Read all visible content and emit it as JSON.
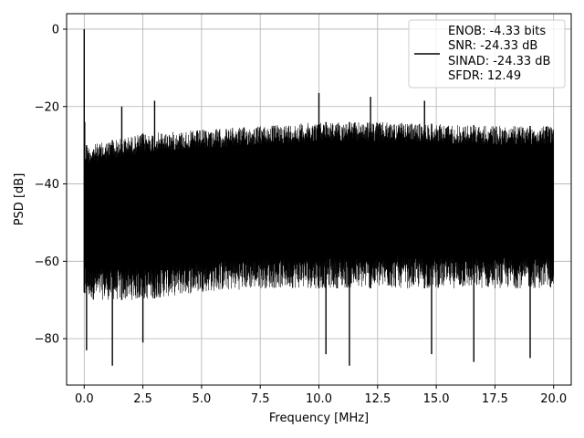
{
  "chart_data": {
    "type": "line",
    "title": "",
    "xlabel": "Frequency [MHz]",
    "ylabel": "PSD [dB]",
    "xlim": [
      -0.75,
      20.75
    ],
    "ylim": [
      -92,
      4
    ],
    "x_ticks": [
      0.0,
      2.5,
      5.0,
      7.5,
      10.0,
      12.5,
      15.0,
      17.5,
      20.0
    ],
    "x_tick_labels": [
      "0.0",
      "2.5",
      "5.0",
      "7.5",
      "10.0",
      "12.5",
      "15.0",
      "17.5",
      "20.0"
    ],
    "y_ticks": [
      0,
      -20,
      -40,
      -60,
      -80
    ],
    "y_tick_labels": [
      "0",
      "−20",
      "−40",
      "−60",
      "−80"
    ],
    "grid": true,
    "legend_position": "top-right",
    "series": [
      {
        "color": "#000000",
        "x_range": [
          0,
          20
        ],
        "envelope": {
          "x": [
            0,
            0.2,
            2.5,
            5.0,
            7.5,
            10.0,
            12.5,
            15.0,
            17.5,
            20.0
          ],
          "upper": [
            -30,
            -30,
            -27,
            -26,
            -25,
            -24,
            -24,
            -24.5,
            -25,
            -25
          ],
          "lower": [
            -68,
            -70,
            -70,
            -68,
            -67,
            -67,
            -67,
            -67,
            -67,
            -67
          ]
        },
        "peaks": [
          {
            "x": 0.0,
            "y": 0
          },
          {
            "x": 0.02,
            "y": -24
          },
          {
            "x": 1.6,
            "y": -20
          },
          {
            "x": 3.0,
            "y": -18.5
          },
          {
            "x": 10.0,
            "y": -16.5
          },
          {
            "x": 12.2,
            "y": -17.5
          },
          {
            "x": 14.5,
            "y": -18.5
          }
        ],
        "dips": [
          {
            "x": 0.1,
            "y": -83
          },
          {
            "x": 1.2,
            "y": -87
          },
          {
            "x": 2.5,
            "y": -81
          },
          {
            "x": 10.3,
            "y": -84
          },
          {
            "x": 11.3,
            "y": -87
          },
          {
            "x": 14.8,
            "y": -84
          },
          {
            "x": 16.6,
            "y": -86
          },
          {
            "x": 19.0,
            "y": -85
          }
        ]
      }
    ],
    "legend": {
      "lines": [
        "ENOB: -4.33 bits",
        "SNR: -24.33 dB",
        "SINAD: -24.33 dB",
        "SFDR: 12.49"
      ],
      "color": "#000000"
    }
  }
}
